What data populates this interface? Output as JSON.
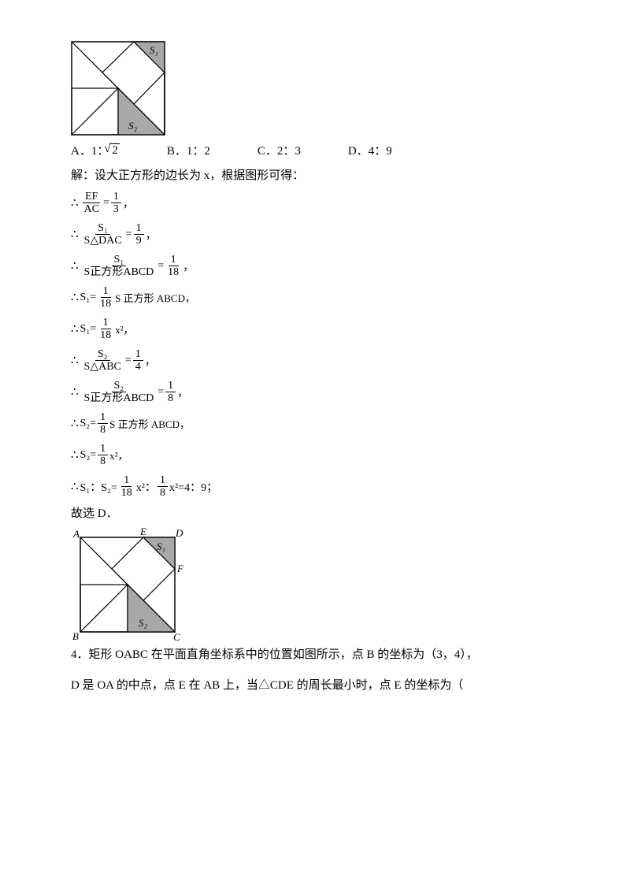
{
  "diagram1": {
    "size": 120,
    "border_color": "#000000",
    "fill_gray": "#a8a8a8",
    "s1_label": "S₁",
    "s2_label": "S₂",
    "label_fontsize": 13,
    "label_style": "italic"
  },
  "options": {
    "a_prefix": "A．1：",
    "a_sqrt": "2",
    "b": "B．1：2",
    "c": "C．2：3",
    "d": "D．4：9"
  },
  "solution": {
    "intro": "解：设大正方形的边长为 x，根据图形可得：",
    "steps": [
      {
        "type": "frac2",
        "lhs_n": "EF",
        "lhs_d": "AC",
        "rhs_n": "1",
        "rhs_d": "3",
        "tail": "，"
      },
      {
        "type": "frac2",
        "lhs_n": "S₁",
        "lhs_d": "S△DAC",
        "rhs_n": "1",
        "rhs_d": "9",
        "tail": "，"
      },
      {
        "type": "frac2",
        "lhs_n": "S₁",
        "lhs_d": "S正方形ABCD",
        "rhs_n": "1",
        "rhs_d": "18",
        "tail": "，"
      },
      {
        "type": "seq",
        "pre": "S₁=",
        "n": "1",
        "d": "18",
        "post": "S 正方形 ABCD，"
      },
      {
        "type": "seq",
        "pre": "S₁=",
        "n": "1",
        "d": "18",
        "post": "x²，"
      },
      {
        "type": "frac2",
        "lhs_n": "S₂",
        "lhs_d": "S△ABC",
        "rhs_n": "1",
        "rhs_d": "4",
        "tail": "，"
      },
      {
        "type": "frac2",
        "lhs_n": "S₂",
        "lhs_d": "S正方形ABCD",
        "rhs_n": "1",
        "rhs_d": "8",
        "tail": "，"
      },
      {
        "type": "seq",
        "pre": "S₂=",
        "n": "1",
        "d": "8",
        "post": "S 正方形 ABCD，"
      },
      {
        "type": "seq",
        "pre": "S₂=",
        "n": "1",
        "d": "8",
        "post": "x²，"
      },
      {
        "type": "final",
        "pre": "S₁：S₂=",
        "n1": "1",
        "d1": "18",
        "mid": "x²：",
        "n2": "1",
        "d2": "8",
        "post": "x²=4：9；"
      }
    ],
    "conclusion": "故选 D．"
  },
  "diagram2": {
    "size": 140,
    "labels": {
      "A": "A",
      "B": "B",
      "C": "C",
      "D": "D",
      "E": "E",
      "F": "F",
      "S1": "S₁",
      "S2": "S₂"
    },
    "fill_gray": "#a8a8a8"
  },
  "q4": {
    "num": "4．",
    "text1": "矩形 OABC 在平面直角坐标系中的位置如图所示，点 B 的坐标为（3，4），",
    "text2": "D 是 OA 的中点，点 E 在 AB 上，当△CDE 的周长最小时，点 E 的坐标为（"
  },
  "colors": {
    "text": "#000000"
  }
}
